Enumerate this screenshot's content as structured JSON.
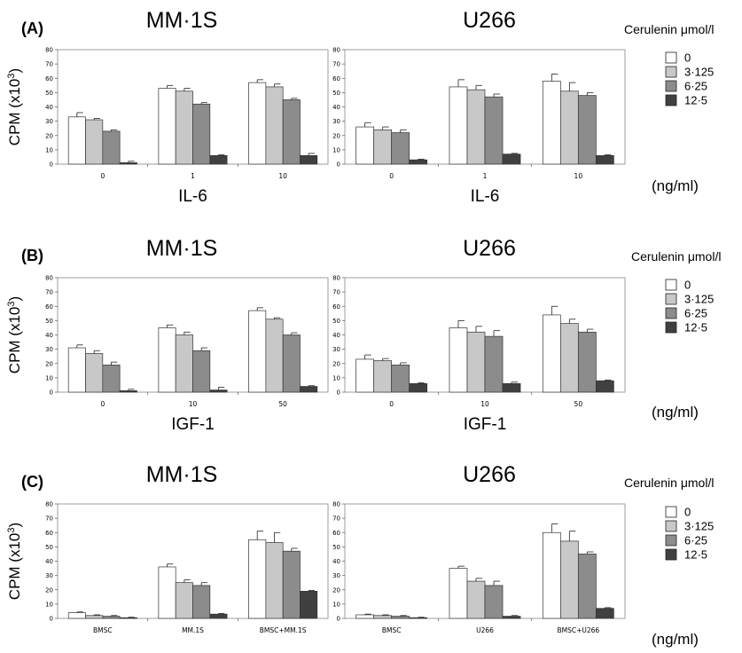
{
  "figure": {
    "ylabel_main": "CPM (x10",
    "ylabel_sup": "3",
    "ylabel_end": ")"
  },
  "legend": {
    "title": "Cerulenin  μmol/l",
    "items": [
      "0",
      "3·125",
      "6·25",
      "12·5"
    ],
    "colors": [
      "#ffffff",
      "#c8c8c8",
      "#8c8c8c",
      "#404040"
    ]
  },
  "rows": [
    {
      "panel_label": "(A)",
      "unit": "(ng/ml)"
    },
    {
      "panel_label": "(B)",
      "unit": "(ng/ml)"
    },
    {
      "panel_label": "(C)",
      "unit": "(ng/ml)"
    }
  ],
  "chart_data": [
    {
      "type": "bar",
      "title": "MM·1S",
      "xlabel": "IL-6",
      "ylim": [
        0,
        80
      ],
      "yticks": [
        0,
        10,
        20,
        30,
        40,
        50,
        60,
        70,
        80
      ],
      "categories": [
        "0",
        "1",
        "10"
      ],
      "series": [
        {
          "name": "0",
          "values": [
            33,
            53,
            57
          ],
          "errors": [
            3,
            2,
            2
          ]
        },
        {
          "name": "3·125",
          "values": [
            31,
            51,
            54
          ],
          "errors": [
            1,
            2,
            2
          ]
        },
        {
          "name": "6·25",
          "values": [
            23,
            42,
            45
          ],
          "errors": [
            1,
            1,
            1
          ]
        },
        {
          "name": "12·5",
          "values": [
            1,
            6,
            6
          ],
          "errors": [
            1,
            0.5,
            1.5
          ]
        }
      ]
    },
    {
      "type": "bar",
      "title": "U266",
      "xlabel": "IL-6",
      "ylim": [
        0,
        80
      ],
      "yticks": [
        0,
        10,
        20,
        30,
        40,
        50,
        60,
        70,
        80
      ],
      "categories": [
        "0",
        "1",
        "10"
      ],
      "series": [
        {
          "name": "0",
          "values": [
            26,
            54,
            58
          ],
          "errors": [
            3,
            5,
            5
          ]
        },
        {
          "name": "3·125",
          "values": [
            24,
            52,
            51
          ],
          "errors": [
            2,
            3,
            6
          ]
        },
        {
          "name": "6·25",
          "values": [
            22,
            47,
            48
          ],
          "errors": [
            2,
            2,
            2
          ]
        },
        {
          "name": "12·5",
          "values": [
            3,
            7,
            6
          ],
          "errors": [
            0.5,
            0.5,
            0.5
          ]
        }
      ]
    },
    {
      "type": "bar",
      "title": "MM·1S",
      "xlabel": "IGF-1",
      "ylim": [
        0,
        80
      ],
      "yticks": [
        0,
        10,
        20,
        30,
        40,
        50,
        60,
        70,
        80
      ],
      "categories": [
        "0",
        "10",
        "50"
      ],
      "series": [
        {
          "name": "0",
          "values": [
            31,
            45,
            57
          ],
          "errors": [
            2,
            2,
            2
          ]
        },
        {
          "name": "3·125",
          "values": [
            27,
            40,
            51
          ],
          "errors": [
            2,
            2,
            1
          ]
        },
        {
          "name": "6·25",
          "values": [
            19,
            29,
            40
          ],
          "errors": [
            2,
            2,
            1.5
          ]
        },
        {
          "name": "12·5",
          "values": [
            1,
            1.5,
            4
          ],
          "errors": [
            1,
            2,
            0.5
          ]
        }
      ]
    },
    {
      "type": "bar",
      "title": "U266",
      "xlabel": "IGF-1",
      "ylim": [
        0,
        80
      ],
      "yticks": [
        0,
        10,
        20,
        30,
        40,
        50,
        60,
        70,
        80
      ],
      "categories": [
        "0",
        "10",
        "50"
      ],
      "series": [
        {
          "name": "0",
          "values": [
            23,
            45,
            54
          ],
          "errors": [
            3,
            5,
            6
          ]
        },
        {
          "name": "3·125",
          "values": [
            22,
            42,
            48
          ],
          "errors": [
            1.5,
            4,
            3
          ]
        },
        {
          "name": "6·25",
          "values": [
            19,
            39,
            42
          ],
          "errors": [
            1.5,
            4,
            2
          ]
        },
        {
          "name": "12·5",
          "values": [
            6,
            6,
            8
          ],
          "errors": [
            0.5,
            1,
            0.5
          ]
        }
      ]
    },
    {
      "type": "bar",
      "title": "MM·1S",
      "xlabel": "",
      "ylim": [
        0,
        80
      ],
      "yticks": [
        0,
        10,
        20,
        30,
        40,
        50,
        60,
        70,
        80
      ],
      "categories": [
        "BMSC",
        "MM.1S",
        "BMSC+MM.1S"
      ],
      "series": [
        {
          "name": "0",
          "values": [
            4,
            36,
            55
          ],
          "errors": [
            0.5,
            2,
            6
          ]
        },
        {
          "name": "3·125",
          "values": [
            2,
            25,
            53
          ],
          "errors": [
            0.5,
            2,
            7
          ]
        },
        {
          "name": "6·25",
          "values": [
            1.5,
            23,
            47
          ],
          "errors": [
            0.5,
            2,
            2
          ]
        },
        {
          "name": "12·5",
          "values": [
            0.5,
            3,
            19
          ],
          "errors": [
            0.3,
            0.5,
            0.5
          ]
        }
      ]
    },
    {
      "type": "bar",
      "title": "U266",
      "xlabel": "",
      "ylim": [
        0,
        80
      ],
      "yticks": [
        0,
        10,
        20,
        30,
        40,
        50,
        60,
        70,
        80
      ],
      "categories": [
        "BMSC",
        "U266",
        "BMSC+U266"
      ],
      "series": [
        {
          "name": "0",
          "values": [
            2.5,
            35,
            60
          ],
          "errors": [
            0.5,
            1.5,
            6
          ]
        },
        {
          "name": "3·125",
          "values": [
            2,
            26,
            54
          ],
          "errors": [
            0.5,
            2,
            7
          ]
        },
        {
          "name": "6·25",
          "values": [
            1.5,
            23,
            45
          ],
          "errors": [
            0.5,
            3,
            1.5
          ]
        },
        {
          "name": "12·5",
          "values": [
            0.5,
            1.5,
            7
          ],
          "errors": [
            0.3,
            0.5,
            0.5
          ]
        }
      ]
    }
  ]
}
